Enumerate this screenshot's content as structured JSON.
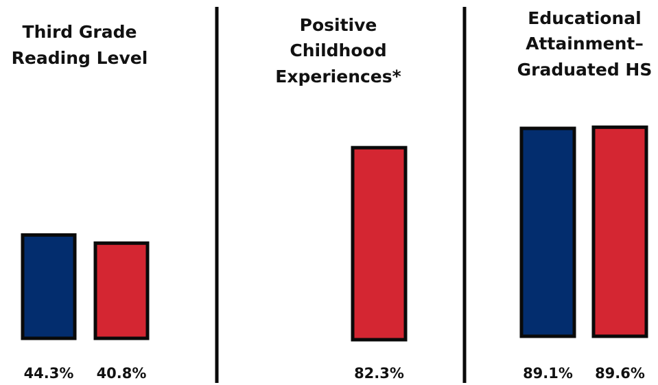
{
  "colors": {
    "series_a": "#032d6e",
    "series_b": "#d42632",
    "outline": "#0a0a0a",
    "divider": "#0a0a0a",
    "text": "#111111"
  },
  "chart_data": [
    {
      "type": "bar",
      "title": "Third Grade Reading Level",
      "title_lines": [
        "Third Grade",
        "Reading Level"
      ],
      "unit": "%",
      "ylim": [
        0,
        100
      ],
      "bars": [
        {
          "value": 44.3,
          "label": "44.3%",
          "color": "#032d6e"
        },
        {
          "value": 40.8,
          "label": "40.8%",
          "color": "#d42632"
        }
      ]
    },
    {
      "type": "bar",
      "title": "Positive Childhood Experiences*",
      "title_lines": [
        "Positive",
        "Childhood",
        "Experiences*"
      ],
      "unit": "%",
      "ylim": [
        0,
        100
      ],
      "bars": [
        {
          "value": 82.3,
          "label": "82.3%",
          "color": "#d42632"
        }
      ]
    },
    {
      "type": "bar",
      "title": "Educational Attainment– Graduated HS",
      "title_lines": [
        "Educational",
        "Attainment–",
        "Graduated HS"
      ],
      "unit": "%",
      "ylim": [
        0,
        100
      ],
      "bars": [
        {
          "value": 89.1,
          "label": "89.1%",
          "color": "#032d6e"
        },
        {
          "value": 89.6,
          "label": "89.6%",
          "color": "#d42632"
        }
      ]
    }
  ]
}
